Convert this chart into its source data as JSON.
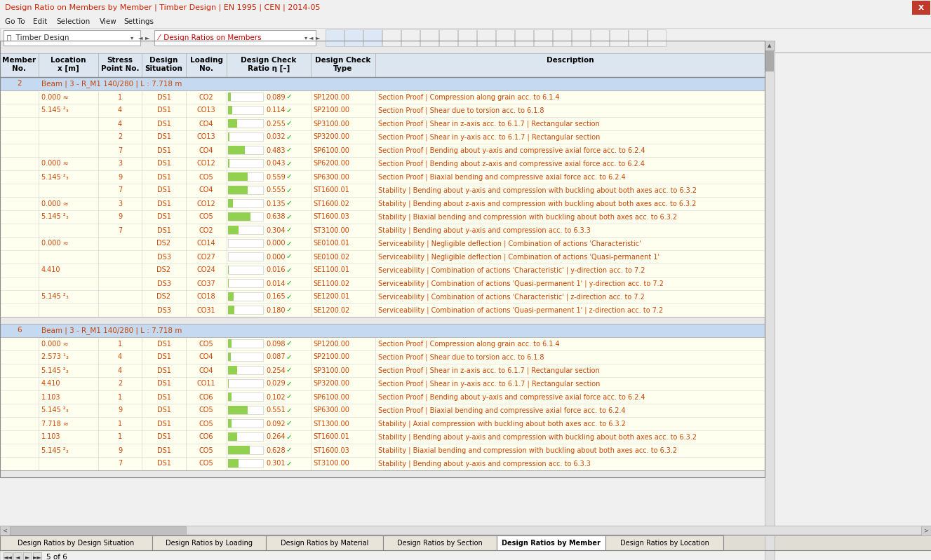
{
  "title": "Design Ratio on Members by Member | Timber Design | EN 1995 | CEN | 2014-05",
  "title_color": "#cc2200",
  "menu_items": [
    "Go To",
    "Edit",
    "Selection",
    "View",
    "Settings"
  ],
  "toolbar_left": "Timber Design",
  "toolbar_right": "Design Ratios on Members",
  "header_bg": "#dce6f1",
  "group_row_bg": "#c5d9f1",
  "data_row_bg": "#fffff0",
  "data_row_fg": "#cc4400",
  "ratio_bar_color": "#92d050",
  "groups": [
    {
      "member_no": "2",
      "label": "Beam | 3 - R_M1 140/280 | L : 7.718 m",
      "rows": [
        {
          "loc": "0.000 ≈",
          "pt": "1",
          "ds": "DS1",
          "load": "CO2",
          "ratio": 0.089,
          "type": "SP1200.00",
          "desc": "Section Proof | Compression along grain acc. to 6.1.4"
        },
        {
          "loc": "5.145 ²₃",
          "pt": "4",
          "ds": "DS1",
          "load": "CO13",
          "ratio": 0.114,
          "type": "SP2100.00",
          "desc": "Section Proof | Shear due to torsion acc. to 6.1.8"
        },
        {
          "loc": "",
          "pt": "4",
          "ds": "DS1",
          "load": "CO4",
          "ratio": 0.255,
          "type": "SP3100.00",
          "desc": "Section Proof | Shear in z-axis acc. to 6.1.7 | Rectangular section"
        },
        {
          "loc": "",
          "pt": "2",
          "ds": "DS1",
          "load": "CO13",
          "ratio": 0.032,
          "type": "SP3200.00",
          "desc": "Section Proof | Shear in y-axis acc. to 6.1.7 | Rectangular section"
        },
        {
          "loc": "",
          "pt": "7",
          "ds": "DS1",
          "load": "CO4",
          "ratio": 0.483,
          "type": "SP6100.00",
          "desc": "Section Proof | Bending about y-axis and compressive axial force acc. to 6.2.4"
        },
        {
          "loc": "0.000 ≈",
          "pt": "3",
          "ds": "DS1",
          "load": "CO12",
          "ratio": 0.043,
          "type": "SP6200.00",
          "desc": "Section Proof | Bending about z-axis and compressive axial force acc. to 6.2.4"
        },
        {
          "loc": "5.145 ²₃",
          "pt": "9",
          "ds": "DS1",
          "load": "CO5",
          "ratio": 0.559,
          "type": "SP6300.00",
          "desc": "Section Proof | Biaxial bending and compressive axial force acc. to 6.2.4"
        },
        {
          "loc": "",
          "pt": "7",
          "ds": "DS1",
          "load": "CO4",
          "ratio": 0.555,
          "type": "ST1600.01",
          "desc": "Stability | Bending about y-axis and compression with buckling about both axes acc. to 6.3.2"
        },
        {
          "loc": "0.000 ≈",
          "pt": "3",
          "ds": "DS1",
          "load": "CO12",
          "ratio": 0.135,
          "type": "ST1600.02",
          "desc": "Stability | Bending about z-axis and compression with buckling about both axes acc. to 6.3.2"
        },
        {
          "loc": "5.145 ²₃",
          "pt": "9",
          "ds": "DS1",
          "load": "CO5",
          "ratio": 0.638,
          "type": "ST1600.03",
          "desc": "Stability | Biaxial bending and compression with buckling about both axes acc. to 6.3.2"
        },
        {
          "loc": "",
          "pt": "7",
          "ds": "DS1",
          "load": "CO2",
          "ratio": 0.304,
          "type": "ST3100.00",
          "desc": "Stability | Bending about y-axis and compression acc. to 6.3.3"
        },
        {
          "loc": "0.000 ≈",
          "pt": "",
          "ds": "DS2",
          "load": "CO14",
          "ratio": 0.0,
          "type": "SE0100.01",
          "desc": "Serviceability | Negligible deflection | Combination of actions 'Characteristic'"
        },
        {
          "loc": "",
          "pt": "",
          "ds": "DS3",
          "load": "CO27",
          "ratio": 0.0,
          "type": "SE0100.02",
          "desc": "Serviceability | Negligible deflection | Combination of actions 'Quasi-permanent 1'"
        },
        {
          "loc": "4.410",
          "pt": "",
          "ds": "DS2",
          "load": "CO24",
          "ratio": 0.016,
          "type": "SE1100.01",
          "desc": "Serviceability | Combination of actions 'Characteristic' | y-direction acc. to 7.2"
        },
        {
          "loc": "",
          "pt": "",
          "ds": "DS3",
          "load": "CO37",
          "ratio": 0.014,
          "type": "SE1100.02",
          "desc": "Serviceability | Combination of actions 'Quasi-permanent 1' | y-direction acc. to 7.2"
        },
        {
          "loc": "5.145 ²₃",
          "pt": "",
          "ds": "DS2",
          "load": "CO18",
          "ratio": 0.165,
          "type": "SE1200.01",
          "desc": "Serviceability | Combination of actions 'Characteristic' | z-direction acc. to 7.2"
        },
        {
          "loc": "",
          "pt": "",
          "ds": "DS3",
          "load": "CO31",
          "ratio": 0.18,
          "type": "SE1200.02",
          "desc": "Serviceability | Combination of actions 'Quasi-permanent 1' | z-direction acc. to 7.2"
        }
      ]
    },
    {
      "member_no": "6",
      "label": "Beam | 3 - R_M1 140/280 | L : 7.718 m",
      "rows": [
        {
          "loc": "0.000 ≈",
          "pt": "1",
          "ds": "DS1",
          "load": "CO5",
          "ratio": 0.098,
          "type": "SP1200.00",
          "desc": "Section Proof | Compression along grain acc. to 6.1.4"
        },
        {
          "loc": "2.573 ¹₃",
          "pt": "4",
          "ds": "DS1",
          "load": "CO4",
          "ratio": 0.087,
          "type": "SP2100.00",
          "desc": "Section Proof | Shear due to torsion acc. to 6.1.8"
        },
        {
          "loc": "5.145 ²₃",
          "pt": "4",
          "ds": "DS1",
          "load": "CO4",
          "ratio": 0.254,
          "type": "SP3100.00",
          "desc": "Section Proof | Shear in z-axis acc. to 6.1.7 | Rectangular section"
        },
        {
          "loc": "4.410",
          "pt": "2",
          "ds": "DS1",
          "load": "CO11",
          "ratio": 0.029,
          "type": "SP3200.00",
          "desc": "Section Proof | Shear in y-axis acc. to 6.1.7 | Rectangular section"
        },
        {
          "loc": "1.103",
          "pt": "1",
          "ds": "DS1",
          "load": "CO6",
          "ratio": 0.102,
          "type": "SP6100.00",
          "desc": "Section Proof | Bending about y-axis and compressive axial force acc. to 6.2.4"
        },
        {
          "loc": "5.145 ²₃",
          "pt": "9",
          "ds": "DS1",
          "load": "CO5",
          "ratio": 0.551,
          "type": "SP6300.00",
          "desc": "Section Proof | Biaxial bending and compressive axial force acc. to 6.2.4"
        },
        {
          "loc": "7.718 ≈",
          "pt": "1",
          "ds": "DS1",
          "load": "CO5",
          "ratio": 0.092,
          "type": "ST1300.00",
          "desc": "Stability | Axial compression with buckling about both axes acc. to 6.3.2"
        },
        {
          "loc": "1.103",
          "pt": "1",
          "ds": "DS1",
          "load": "CO6",
          "ratio": 0.264,
          "type": "ST1600.01",
          "desc": "Stability | Bending about y-axis and compression with buckling about both axes acc. to 6.3.2"
        },
        {
          "loc": "5.145 ²₃",
          "pt": "9",
          "ds": "DS1",
          "load": "CO5",
          "ratio": 0.628,
          "type": "ST1600.03",
          "desc": "Stability | Biaxial bending and compression with buckling about both axes acc. to 6.3.2"
        },
        {
          "loc": "",
          "pt": "7",
          "ds": "DS1",
          "load": "CO5",
          "ratio": 0.301,
          "type": "ST3100.00",
          "desc": "Stability | Bending about y-axis and compression acc. to 6.3.3"
        }
      ]
    }
  ],
  "bottom_tabs": [
    "Design Ratios by Design Situation",
    "Design Ratios by Loading",
    "Design Ratios by Material",
    "Design Ratios by Section",
    "Design Ratios by Member",
    "Design Ratios by Location"
  ],
  "active_tab": "Design Ratios by Member",
  "status_bar": "5 of 6"
}
